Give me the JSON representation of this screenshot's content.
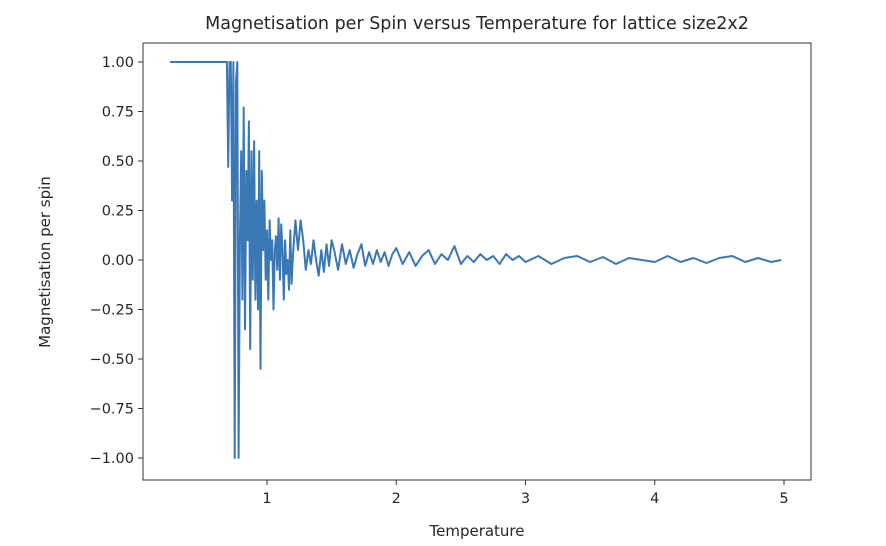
{
  "chart_data": {
    "type": "line",
    "title": "Magnetisation per Spin versus Temperature for lattice size2x2",
    "xlabel": "Temperature",
    "ylabel": "Magnetisation per spin",
    "xlim": [
      0,
      5.2
    ],
    "ylim": [
      -1.1,
      1.1
    ],
    "xticks": [
      1,
      2,
      3,
      4,
      5
    ],
    "xtick_labels": [
      "1",
      "2",
      "3",
      "4",
      "5"
    ],
    "yticks": [
      1.0,
      0.75,
      0.5,
      0.25,
      0.0,
      -0.25,
      -0.5,
      -0.75,
      -1.0
    ],
    "ytick_labels": [
      "1.00",
      "0.75",
      "0.50",
      "0.25",
      "0.00",
      "−0.25",
      "−0.50",
      "−0.75",
      "−1.00"
    ],
    "grid": false,
    "line_color": "#3a78b5",
    "series": [
      {
        "name": "magnetisation",
        "x": [
          0.25,
          0.35,
          0.45,
          0.55,
          0.65,
          0.69,
          0.7,
          0.71,
          0.72,
          0.73,
          0.74,
          0.75,
          0.76,
          0.77,
          0.78,
          0.79,
          0.8,
          0.81,
          0.82,
          0.83,
          0.84,
          0.85,
          0.86,
          0.87,
          0.88,
          0.89,
          0.9,
          0.91,
          0.92,
          0.93,
          0.94,
          0.95,
          0.96,
          0.97,
          0.98,
          0.99,
          1.0,
          1.01,
          1.02,
          1.03,
          1.04,
          1.05,
          1.06,
          1.07,
          1.08,
          1.09,
          1.1,
          1.11,
          1.12,
          1.13,
          1.14,
          1.15,
          1.16,
          1.17,
          1.18,
          1.19,
          1.2,
          1.22,
          1.24,
          1.26,
          1.28,
          1.3,
          1.32,
          1.34,
          1.36,
          1.38,
          1.4,
          1.42,
          1.44,
          1.46,
          1.48,
          1.5,
          1.52,
          1.55,
          1.58,
          1.61,
          1.64,
          1.67,
          1.7,
          1.73,
          1.76,
          1.79,
          1.82,
          1.85,
          1.88,
          1.91,
          1.94,
          1.97,
          2.0,
          2.05,
          2.1,
          2.15,
          2.2,
          2.25,
          2.3,
          2.35,
          2.4,
          2.45,
          2.5,
          2.55,
          2.6,
          2.65,
          2.7,
          2.75,
          2.8,
          2.85,
          2.9,
          2.95,
          3.0,
          3.1,
          3.2,
          3.3,
          3.4,
          3.5,
          3.6,
          3.7,
          3.8,
          3.9,
          4.0,
          4.1,
          4.2,
          4.3,
          4.4,
          4.5,
          4.6,
          4.7,
          4.8,
          4.9,
          4.98
        ],
        "y": [
          1,
          1,
          1,
          1,
          1,
          1,
          0.47,
          1,
          1,
          0.3,
          1,
          -1,
          0.9,
          1,
          -1,
          0.1,
          0.55,
          -0.2,
          0.77,
          -0.35,
          0.45,
          0.1,
          0.7,
          -0.45,
          0.55,
          -0.1,
          0.6,
          -0.2,
          0.3,
          -0.25,
          0.55,
          -0.55,
          0.45,
          0.05,
          0.3,
          -0.1,
          0.15,
          -0.2,
          0.2,
          0.0,
          0.1,
          -0.25,
          0.05,
          0.12,
          -0.05,
          0.21,
          -0.1,
          0.18,
          0.05,
          -0.2,
          0.1,
          -0.07,
          0.0,
          -0.15,
          0.15,
          -0.12,
          0.02,
          0.2,
          0.05,
          0.2,
          0.1,
          -0.05,
          0.05,
          -0.02,
          0.1,
          0.0,
          -0.08,
          0.05,
          -0.06,
          0.08,
          -0.03,
          0.1,
          0.05,
          -0.05,
          0.08,
          -0.02,
          0.05,
          -0.04,
          0.03,
          0.08,
          -0.03,
          0.04,
          -0.02,
          0.05,
          -0.01,
          0.04,
          -0.03,
          0.03,
          0.06,
          -0.02,
          0.04,
          -0.03,
          0.02,
          0.05,
          -0.02,
          0.03,
          0.0,
          0.07,
          -0.02,
          0.02,
          -0.01,
          0.03,
          0.0,
          0.02,
          -0.02,
          0.03,
          0.0,
          0.02,
          -0.01,
          0.02,
          -0.02,
          0.01,
          0.02,
          -0.01,
          0.015,
          -0.02,
          0.01,
          0.0,
          -0.01,
          0.02,
          -0.01,
          0.01,
          -0.015,
          0.01,
          0.02,
          -0.01,
          0.01,
          -0.01,
          0.0
        ]
      }
    ]
  }
}
